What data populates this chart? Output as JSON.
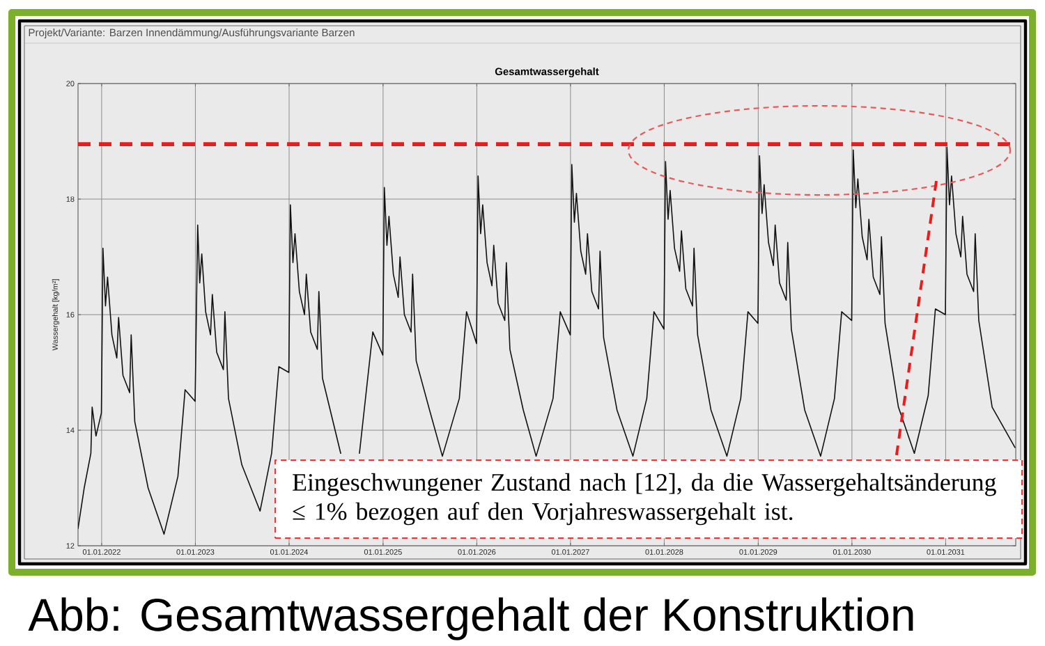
{
  "chart_data": {
    "type": "line",
    "title": "Gesamtwassergehalt",
    "ylabel": "Wassergehalt [kg/m²]",
    "annotations": [
      "Projekt/Variante:  Barzen Innendämmung/Ausführungsvariante Barzen",
      "Eingeschwungener Zustand nach [12], da die Wassergehaltsänderung ≤ 1% bezogen auf den Vorjahreswassergehalt ist.",
      "Abb: Gesamtwassergehalt der Konstruktion"
    ],
    "color": "#111111",
    "grid": true,
    "xlim": [
      "2021-10-01",
      "2031-10-01"
    ],
    "xticks": [
      {
        "value": "2022-01-01",
        "label": "01.01.2022"
      },
      {
        "value": "2023-01-01",
        "label": "01.01.2023"
      },
      {
        "value": "2024-01-01",
        "label": "01.01.2024"
      },
      {
        "value": "2025-01-01",
        "label": "01.01.2025"
      },
      {
        "value": "2026-01-01",
        "label": "01.01.2026"
      },
      {
        "value": "2027-01-01",
        "label": "01.01.2027"
      },
      {
        "value": "2028-01-01",
        "label": "01.01.2028"
      },
      {
        "value": "2029-01-01",
        "label": "01.01.2029"
      },
      {
        "value": "2030-01-01",
        "label": "01.01.2030"
      },
      {
        "value": "2031-01-01",
        "label": "01.01.2031"
      }
    ],
    "ylim": [
      12,
      20
    ],
    "yticks": [
      12,
      14,
      16,
      18,
      20
    ],
    "ref_lines": [
      {
        "axis": "y",
        "value": 18.95,
        "color": "#e81e1e",
        "line_style": "dashed"
      }
    ],
    "x": [
      "2021-10-01",
      "2021-10-25",
      "2021-11-20",
      "2021-11-25",
      "2021-12-10",
      "2021-12-31",
      "2022-01-06",
      "2022-01-16",
      "2022-01-24",
      "2022-02-10",
      "2022-03-01",
      "2022-03-08",
      "2022-03-25",
      "2022-04-20",
      "2022-04-26",
      "2022-05-10",
      "2022-07-01",
      "2022-09-01",
      "2022-10-25",
      "2022-11-22",
      "2022-12-31",
      "2023-01-10",
      "2023-01-18",
      "2023-01-26",
      "2023-02-10",
      "2023-03-01",
      "2023-03-08",
      "2023-03-25",
      "2023-04-20",
      "2023-04-26",
      "2023-05-10",
      "2023-07-01",
      "2023-09-10",
      "2023-10-25",
      "2023-11-22",
      "2023-12-31",
      "2024-01-06",
      "2024-01-16",
      "2024-01-24",
      "2024-02-10",
      "2024-03-01",
      "2024-03-08",
      "2024-03-25",
      "2024-04-20",
      "2024-04-26",
      "2024-05-10",
      "2024-07-20",
      "2024-09-01",
      "2024-10-01",
      "2024-11-22",
      "2024-12-31",
      "2025-01-06",
      "2025-01-16",
      "2025-01-24",
      "2025-02-10",
      "2025-03-01",
      "2025-03-08",
      "2025-03-25",
      "2025-04-20",
      "2025-04-26",
      "2025-05-10",
      "2025-07-01",
      "2025-08-20",
      "2025-10-25",
      "2025-11-22",
      "2025-12-31",
      "2026-01-06",
      "2026-01-16",
      "2026-01-24",
      "2026-02-10",
      "2026-03-01",
      "2026-03-08",
      "2026-03-25",
      "2026-04-20",
      "2026-04-26",
      "2026-05-10",
      "2026-07-01",
      "2026-08-20",
      "2026-10-25",
      "2026-11-22",
      "2026-12-31",
      "2027-01-06",
      "2027-01-16",
      "2027-01-24",
      "2027-02-10",
      "2027-03-01",
      "2027-03-08",
      "2027-03-25",
      "2027-04-20",
      "2027-04-26",
      "2027-05-10",
      "2027-07-01",
      "2027-09-01",
      "2027-10-25",
      "2027-11-22",
      "2027-12-31",
      "2028-01-06",
      "2028-01-16",
      "2028-01-24",
      "2028-02-10",
      "2028-03-01",
      "2028-03-08",
      "2028-03-25",
      "2028-04-20",
      "2028-04-26",
      "2028-05-10",
      "2028-07-01",
      "2028-09-01",
      "2028-10-25",
      "2028-11-22",
      "2028-12-31",
      "2029-01-06",
      "2029-01-16",
      "2029-01-24",
      "2029-02-10",
      "2029-03-01",
      "2029-03-08",
      "2029-03-25",
      "2029-04-20",
      "2029-04-26",
      "2029-05-10",
      "2029-07-01",
      "2029-09-01",
      "2029-10-25",
      "2029-11-22",
      "2029-12-31",
      "2030-01-06",
      "2030-01-16",
      "2030-01-24",
      "2030-02-10",
      "2030-03-01",
      "2030-03-08",
      "2030-03-25",
      "2030-04-20",
      "2030-04-26",
      "2030-05-10",
      "2030-07-01",
      "2030-09-01",
      "2030-10-25",
      "2030-11-22",
      "2030-12-31",
      "2031-01-06",
      "2031-01-16",
      "2031-01-24",
      "2031-02-10",
      "2031-03-01",
      "2031-03-08",
      "2031-03-25",
      "2031-04-20",
      "2031-04-26",
      "2031-05-10",
      "2031-07-01",
      "2031-09-28"
    ],
    "values": [
      12.3,
      13.0,
      13.6,
      14.4,
      13.9,
      14.3,
      17.15,
      16.15,
      16.65,
      15.65,
      15.25,
      15.95,
      14.95,
      14.65,
      15.65,
      14.15,
      13.0,
      12.2,
      13.2,
      14.7,
      14.5,
      17.55,
      16.55,
      17.05,
      16.05,
      15.65,
      16.35,
      15.35,
      15.05,
      16.05,
      14.55,
      13.4,
      12.6,
      13.6,
      15.1,
      15.0,
      17.9,
      16.9,
      17.4,
      16.4,
      16.0,
      16.7,
      15.7,
      15.4,
      16.4,
      14.9,
      13.6,
      null,
      13.6,
      15.7,
      15.3,
      18.2,
      17.2,
      17.7,
      16.7,
      16.3,
      17.0,
      16.0,
      15.7,
      16.7,
      15.2,
      14.35,
      13.55,
      14.55,
      16.05,
      15.5,
      18.4,
      17.4,
      17.9,
      16.9,
      16.5,
      17.2,
      16.2,
      15.9,
      16.9,
      15.4,
      14.35,
      13.55,
      14.55,
      16.05,
      15.65,
      18.6,
      17.6,
      18.1,
      17.1,
      16.7,
      17.4,
      16.4,
      16.1,
      17.1,
      15.6,
      14.35,
      13.55,
      14.55,
      16.05,
      15.75,
      18.65,
      17.65,
      18.15,
      17.15,
      16.75,
      17.45,
      16.45,
      16.15,
      17.15,
      15.65,
      14.35,
      13.55,
      14.55,
      16.05,
      15.85,
      18.75,
      17.75,
      18.25,
      17.25,
      16.85,
      17.55,
      16.55,
      16.25,
      17.25,
      15.75,
      14.35,
      13.55,
      14.55,
      16.05,
      15.9,
      18.85,
      17.85,
      18.35,
      17.35,
      16.95,
      17.65,
      16.65,
      16.35,
      17.35,
      15.85,
      14.4,
      13.6,
      14.6,
      16.1,
      16.0,
      18.9,
      17.9,
      18.4,
      17.4,
      17.0,
      17.7,
      16.7,
      16.4,
      17.4,
      15.9,
      14.4,
      13.7
    ]
  }
}
